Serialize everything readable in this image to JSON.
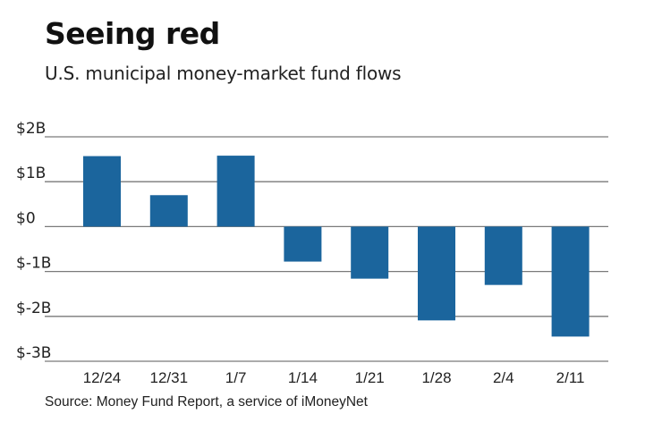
{
  "title": "Seeing red",
  "subtitle": "U.S. municipal money-market fund flows",
  "source": "Source: Money Fund Report, a service of iMoneyNet",
  "colors": {
    "bar": "#1b659d",
    "grid": "#7a7a7a",
    "text": "#222222"
  },
  "chart_data": {
    "type": "bar",
    "title": "Seeing red",
    "subtitle": "U.S. municipal money-market fund flows",
    "xlabel": "",
    "ylabel": "",
    "units": "USD billions",
    "categories": [
      "12/24",
      "12/31",
      "1/7",
      "1/14",
      "1/21",
      "1/28",
      "2/4",
      "2/11"
    ],
    "values": [
      1.57,
      0.7,
      1.58,
      -0.78,
      -1.16,
      -2.09,
      -1.3,
      -2.45
    ],
    "ylim": [
      -3,
      2
    ],
    "yticks": [
      2,
      1,
      0,
      -1,
      -2,
      -3
    ],
    "ytick_labels": [
      "$2B",
      "$1B",
      "$0",
      "$-1B",
      "$-2B",
      "$-3B"
    ],
    "grid": true,
    "legend": "none",
    "source": "Source: Money Fund Report, a service of iMoneyNet"
  }
}
